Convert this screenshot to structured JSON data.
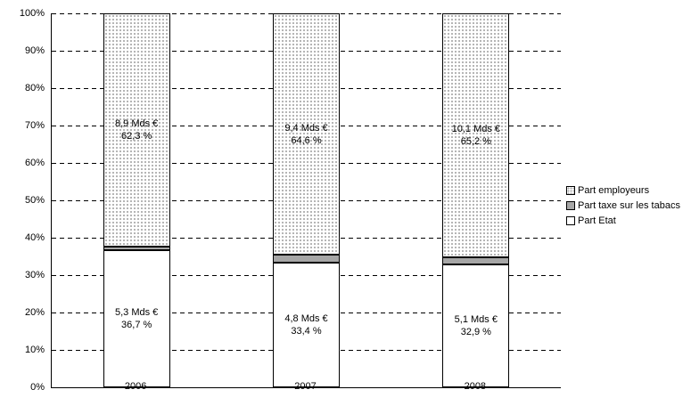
{
  "colors": {
    "background": "#ffffff",
    "axis": "#000000",
    "gridline": "#000000",
    "bar_border": "#000000",
    "employeurs_fill": "#ffffff",
    "employeurs_dot": "#a8a8a8",
    "tabacs_fill": "#a6a6a6",
    "etat_fill": "#ffffff",
    "text": "#000000"
  },
  "chart_data": {
    "type": "bar",
    "variant": "stacked-100-percent-column",
    "title": "",
    "xlabel": "",
    "ylabel": "",
    "categories": [
      "2006",
      "2007",
      "2008"
    ],
    "series": [
      {
        "name": "Part employeurs",
        "swatch": "dotted",
        "stack_position": "top",
        "values_mds_eur": [
          8.9,
          9.4,
          10.1
        ],
        "values_pct": [
          62.3,
          64.6,
          65.2
        ],
        "labels_amount": [
          "8,9 Mds €",
          "9,4 Mds €",
          "10,1 Mds €"
        ],
        "labels_pct": [
          "62,3 %",
          "64,6 %",
          "65,2 %"
        ]
      },
      {
        "name": "Part taxe sur les tabacs",
        "swatch": "gray",
        "stack_position": "middle",
        "values_pct": [
          1.0,
          2.0,
          1.9
        ],
        "labels_amount": [
          "",
          "",
          ""
        ],
        "labels_pct": [
          "",
          "",
          ""
        ]
      },
      {
        "name": "Part Etat",
        "swatch": "white",
        "stack_position": "bottom",
        "values_mds_eur": [
          5.3,
          4.8,
          5.1
        ],
        "values_pct": [
          36.7,
          33.4,
          32.9
        ],
        "labels_amount": [
          "5,3 Mds €",
          "4,8 Mds €",
          "5,1 Mds €"
        ],
        "labels_pct": [
          "36,7 %",
          "33,4 %",
          "32,9 %"
        ]
      }
    ],
    "y_axis": {
      "min": 0,
      "max": 100,
      "tick_step": 10,
      "tick_labels": [
        "0%",
        "10%",
        "20%",
        "30%",
        "40%",
        "50%",
        "60%",
        "70%",
        "80%",
        "90%",
        "100%"
      ],
      "grid": "dashed"
    },
    "legend": {
      "position": "right",
      "entries": [
        "Part employeurs",
        "Part taxe sur les tabacs",
        "Part Etat"
      ]
    }
  }
}
